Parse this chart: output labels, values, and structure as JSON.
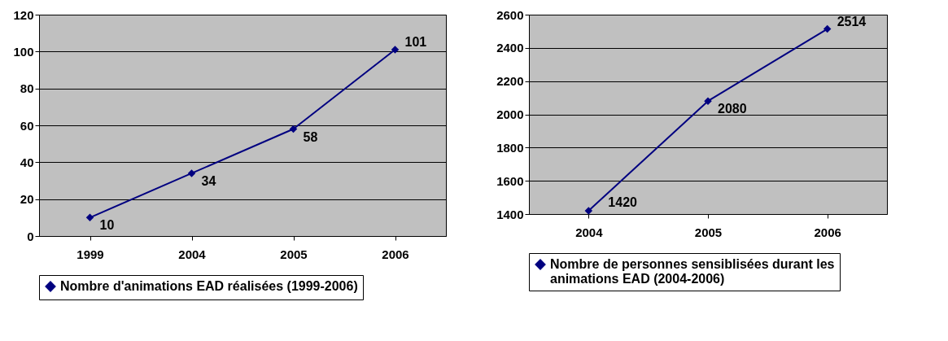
{
  "chart_data": [
    {
      "type": "line",
      "categories": [
        "1999",
        "2004",
        "2005",
        "2006"
      ],
      "series": [
        {
          "name": "Nombre d'animations EAD réalisées (1999-2006)",
          "color": "#000080",
          "values": [
            10,
            34,
            58,
            101
          ]
        }
      ],
      "ylim": [
        0,
        120
      ],
      "yticks": [
        0,
        20,
        40,
        60,
        80,
        100,
        120
      ],
      "grid": "y",
      "legend": "bottom",
      "marker": "diamond",
      "line_style": "solid",
      "data_labels": true
    },
    {
      "type": "line",
      "categories": [
        "2004",
        "2005",
        "2006"
      ],
      "series": [
        {
          "name": "Nombre de personnes sensiblisées durant les animations EAD (2004-2006)",
          "color": "#000080",
          "values": [
            1420,
            2080,
            2514
          ]
        }
      ],
      "ylim": [
        1400,
        2600
      ],
      "yticks": [
        1400,
        1600,
        1800,
        2000,
        2200,
        2400,
        2600
      ],
      "grid": "y",
      "legend": "bottom",
      "marker": "diamond",
      "line_style": "solid",
      "data_labels": true
    }
  ]
}
